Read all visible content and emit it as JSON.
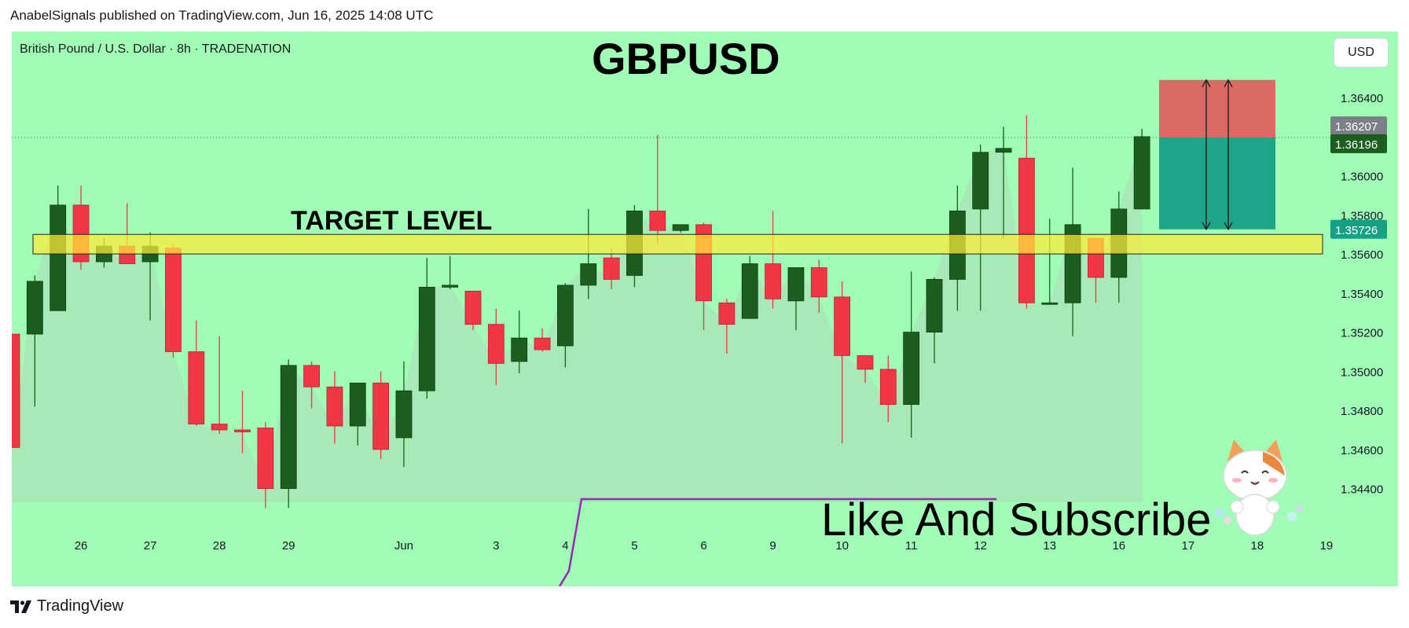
{
  "header": {
    "publisher_line": "AnabelSignals published on TradingView.com, Jun 16, 2025 14:08 UTC"
  },
  "chart_header": {
    "symbol_description": "British Pound / U.S. Dollar · 8h · TRADENATION",
    "currency": "USD"
  },
  "overlay": {
    "headline": "GBPUSD",
    "target_label": "TARGET LEVEL",
    "cta": "Like And Subscribe"
  },
  "footer": {
    "brand": "TradingView"
  },
  "colors": {
    "background": "#9ffdb6",
    "bull": "#1b5e20",
    "bear": "#f23645",
    "target_zone": "#ffeb3b",
    "stop_zone": "#e05a5a",
    "profit_zone": "#16a085",
    "area_fill": "#a8e6b8",
    "purple_line": "#9c27b0"
  },
  "chart_data": {
    "type": "candlestick",
    "symbol": "GBPUSD",
    "timeframe": "8h",
    "ylim": [
      1.3433,
      1.3671
    ],
    "y_ticks": [
      "1.36400",
      "1.36000",
      "1.35800",
      "1.35600",
      "1.35400",
      "1.35200",
      "1.35000",
      "1.34800",
      "1.34600",
      "1.34400"
    ],
    "x_ticks": [
      "3",
      "26",
      "27",
      "28",
      "29",
      "Jun",
      "3",
      "4",
      "5",
      "6",
      "9",
      "10",
      "11",
      "12",
      "13",
      "16",
      "17",
      "18",
      "19"
    ],
    "x_tick_index": [
      -0.2,
      3,
      6,
      9,
      12,
      17,
      21,
      24,
      27,
      30,
      33,
      36,
      39,
      42,
      45,
      48,
      51,
      54,
      57
    ],
    "price_labels": [
      {
        "value": "1.36207",
        "color": "#7b7f86"
      },
      {
        "value": "1.36196",
        "color": "#1b5e20"
      },
      {
        "value": "1.35726",
        "color": "#16a085"
      }
    ],
    "current_price": 1.36196,
    "target_zone": [
      1.356,
      1.357
    ],
    "position": {
      "entry": 1.36196,
      "stop": 1.3649,
      "target": 1.35726
    },
    "candles": [
      [
        1.3519,
        1.3519,
        1.3461,
        1.3461
      ],
      [
        1.3519,
        1.3549,
        1.3482,
        1.3546
      ],
      [
        1.3531,
        1.3595,
        1.3531,
        1.3585
      ],
      [
        1.3585,
        1.3595,
        1.3552,
        1.3556
      ],
      [
        1.3556,
        1.3568,
        1.3553,
        1.3564
      ],
      [
        1.3564,
        1.3586,
        1.3555,
        1.3555
      ],
      [
        1.3556,
        1.3571,
        1.3526,
        1.3564
      ],
      [
        1.3563,
        1.3565,
        1.3507,
        1.351
      ],
      [
        1.351,
        1.3526,
        1.3472,
        1.3473
      ],
      [
        1.3473,
        1.3518,
        1.3468,
        1.347
      ],
      [
        1.347,
        1.349,
        1.3458,
        1.3469
      ],
      [
        1.3471,
        1.3474,
        1.343,
        1.344
      ],
      [
        1.344,
        1.3506,
        1.343,
        1.3503
      ],
      [
        1.3503,
        1.3505,
        1.3481,
        1.3492
      ],
      [
        1.3492,
        1.35,
        1.3463,
        1.3472
      ],
      [
        1.3472,
        1.3494,
        1.3462,
        1.3494
      ],
      [
        1.3494,
        1.35,
        1.3455,
        1.346
      ],
      [
        1.3466,
        1.3505,
        1.3451,
        1.349
      ],
      [
        1.349,
        1.3558,
        1.3486,
        1.3543
      ],
      [
        1.3543,
        1.3559,
        1.3542,
        1.3544
      ],
      [
        1.3541,
        1.3541,
        1.3521,
        1.3524
      ],
      [
        1.3524,
        1.3532,
        1.3493,
        1.3504
      ],
      [
        1.3505,
        1.3531,
        1.3499,
        1.3517
      ],
      [
        1.3517,
        1.3522,
        1.351,
        1.3511
      ],
      [
        1.3513,
        1.3545,
        1.3502,
        1.3544
      ],
      [
        1.3544,
        1.3583,
        1.3537,
        1.3555
      ],
      [
        1.3558,
        1.3563,
        1.3542,
        1.3547
      ],
      [
        1.3549,
        1.3585,
        1.3543,
        1.3582
      ],
      [
        1.3582,
        1.3621,
        1.3565,
        1.3572
      ],
      [
        1.3572,
        1.3575,
        1.3571,
        1.3575
      ],
      [
        1.3575,
        1.3576,
        1.3521,
        1.3536
      ],
      [
        1.3535,
        1.3537,
        1.3509,
        1.3524
      ],
      [
        1.3527,
        1.3559,
        1.3527,
        1.3555
      ],
      [
        1.3555,
        1.3582,
        1.3532,
        1.3537
      ],
      [
        1.3536,
        1.3553,
        1.3521,
        1.3553
      ],
      [
        1.3553,
        1.3557,
        1.353,
        1.3538
      ],
      [
        1.3538,
        1.3546,
        1.3463,
        1.3508
      ],
      [
        1.3508,
        1.3508,
        1.3494,
        1.3501
      ],
      [
        1.3501,
        1.3508,
        1.3474,
        1.3483
      ],
      [
        1.3483,
        1.3551,
        1.3466,
        1.352
      ],
      [
        1.352,
        1.3548,
        1.3504,
        1.3547
      ],
      [
        1.3547,
        1.3595,
        1.3531,
        1.3582
      ],
      [
        1.3583,
        1.3616,
        1.3531,
        1.3612
      ],
      [
        1.3612,
        1.3625,
        1.3568,
        1.3614
      ],
      [
        1.3609,
        1.3631,
        1.3532,
        1.3535
      ],
      [
        1.3535,
        1.3578,
        1.3534,
        1.3535
      ],
      [
        1.3535,
        1.3604,
        1.3518,
        1.3575
      ],
      [
        1.3568,
        1.3568,
        1.3535,
        1.3548
      ],
      [
        1.3548,
        1.3592,
        1.3535,
        1.3583
      ],
      [
        1.3583,
        1.3624,
        1.3583,
        1.362
      ]
    ]
  }
}
